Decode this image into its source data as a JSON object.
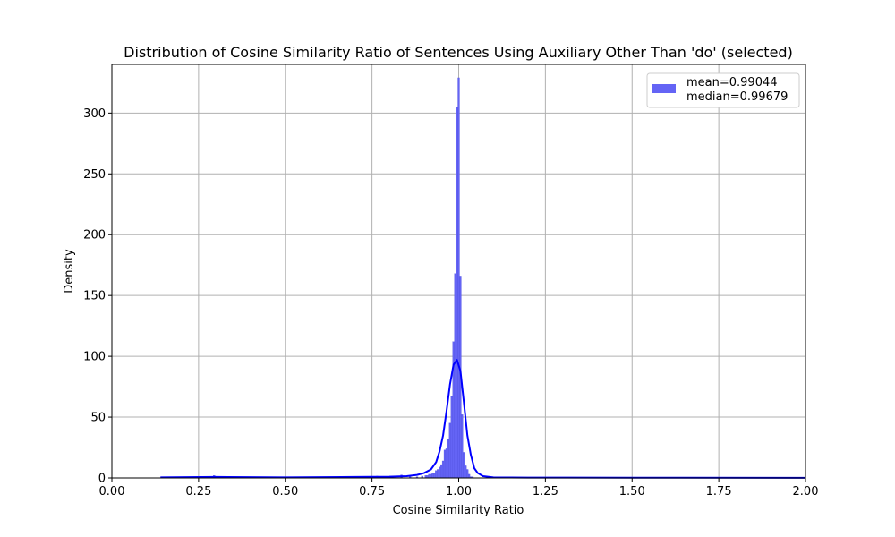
{
  "chart_data": {
    "type": "bar",
    "title": "Distribution of Cosine Similarity Ratio of Sentences Using Auxiliary Other Than 'do' (selected)",
    "xlabel": "Cosine Similarity Ratio",
    "ylabel": "Density",
    "xlim": [
      0.0,
      2.0
    ],
    "ylim": [
      0,
      340
    ],
    "xticks": [
      0.0,
      0.25,
      0.5,
      0.75,
      1.0,
      1.25,
      1.5,
      1.75,
      2.0
    ],
    "xtick_labels": [
      "0.00",
      "0.25",
      "0.50",
      "0.75",
      "1.00",
      "1.25",
      "1.50",
      "1.75",
      "2.00"
    ],
    "yticks": [
      0,
      50,
      100,
      150,
      200,
      250,
      300
    ],
    "ytick_labels": [
      "0",
      "50",
      "100",
      "150",
      "200",
      "250",
      "300"
    ],
    "grid": true,
    "legend": {
      "placement": "top-right",
      "entries": [
        {
          "label_line1": "mean=0.99044",
          "label_line2": "median=0.99679",
          "color": "#6464f5"
        }
      ]
    },
    "histogram": {
      "color": "#6464f5",
      "bin_width": 0.005,
      "bins": [
        {
          "x": 0.295,
          "y": 2
        },
        {
          "x": 0.765,
          "y": 1.5
        },
        {
          "x": 0.835,
          "y": 2.5
        },
        {
          "x": 0.86,
          "y": 1
        },
        {
          "x": 0.88,
          "y": 1
        },
        {
          "x": 0.895,
          "y": 1.5
        },
        {
          "x": 0.905,
          "y": 2
        },
        {
          "x": 0.91,
          "y": 2
        },
        {
          "x": 0.915,
          "y": 3
        },
        {
          "x": 0.92,
          "y": 3
        },
        {
          "x": 0.925,
          "y": 4
        },
        {
          "x": 0.93,
          "y": 4
        },
        {
          "x": 0.935,
          "y": 6
        },
        {
          "x": 0.94,
          "y": 7
        },
        {
          "x": 0.945,
          "y": 9
        },
        {
          "x": 0.95,
          "y": 11
        },
        {
          "x": 0.955,
          "y": 14
        },
        {
          "x": 0.96,
          "y": 23
        },
        {
          "x": 0.965,
          "y": 24
        },
        {
          "x": 0.97,
          "y": 32
        },
        {
          "x": 0.975,
          "y": 45
        },
        {
          "x": 0.98,
          "y": 67
        },
        {
          "x": 0.985,
          "y": 112
        },
        {
          "x": 0.99,
          "y": 168
        },
        {
          "x": 0.995,
          "y": 305
        },
        {
          "x": 1.0,
          "y": 329
        },
        {
          "x": 1.005,
          "y": 166
        },
        {
          "x": 1.01,
          "y": 52
        },
        {
          "x": 1.015,
          "y": 21
        },
        {
          "x": 1.02,
          "y": 10
        },
        {
          "x": 1.025,
          "y": 7
        },
        {
          "x": 1.03,
          "y": 3
        },
        {
          "x": 1.035,
          "y": 1
        },
        {
          "x": 1.04,
          "y": 1
        }
      ]
    },
    "kde": {
      "color": "#0000ff",
      "x": [
        0.14,
        0.3,
        0.5,
        0.7,
        0.8,
        0.85,
        0.88,
        0.9,
        0.92,
        0.935,
        0.945,
        0.955,
        0.965,
        0.975,
        0.985,
        0.995,
        1.005,
        1.015,
        1.025,
        1.035,
        1.045,
        1.055,
        1.07,
        1.1,
        1.2,
        1.5,
        2.0
      ],
      "y": [
        0.5,
        0.8,
        0.5,
        0.8,
        1,
        1.5,
        2.5,
        4,
        7,
        13,
        22,
        35,
        55,
        77,
        93,
        97,
        88,
        62,
        35,
        19,
        8,
        4,
        1.5,
        0.5,
        0.3,
        0.2,
        0.1
      ]
    }
  }
}
